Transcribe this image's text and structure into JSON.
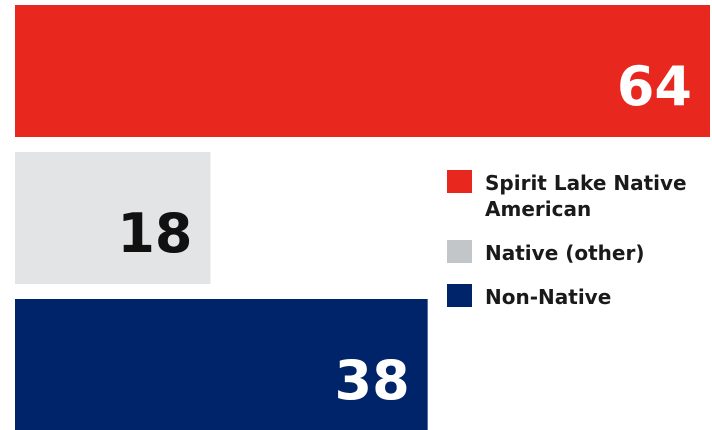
{
  "chart_data": {
    "type": "bar",
    "orientation": "horizontal",
    "categories": [
      "Spirit Lake Native American",
      "Native (other)",
      "Non-Native"
    ],
    "values": [
      64,
      18,
      38
    ],
    "xlim": [
      0,
      64
    ],
    "grid": false,
    "legend_position": "right",
    "colors": [
      "#e8271e",
      "#e3e4e6",
      "#002469"
    ],
    "label_colors": [
      "#ffffff",
      "#111111",
      "#ffffff"
    ]
  },
  "legend": {
    "items": [
      {
        "label": "Spirit Lake Native American",
        "color": "#e8271e"
      },
      {
        "label": "Native (other)",
        "color": "#c3c6c8"
      },
      {
        "label": "Non-Native",
        "color": "#002469"
      }
    ]
  }
}
